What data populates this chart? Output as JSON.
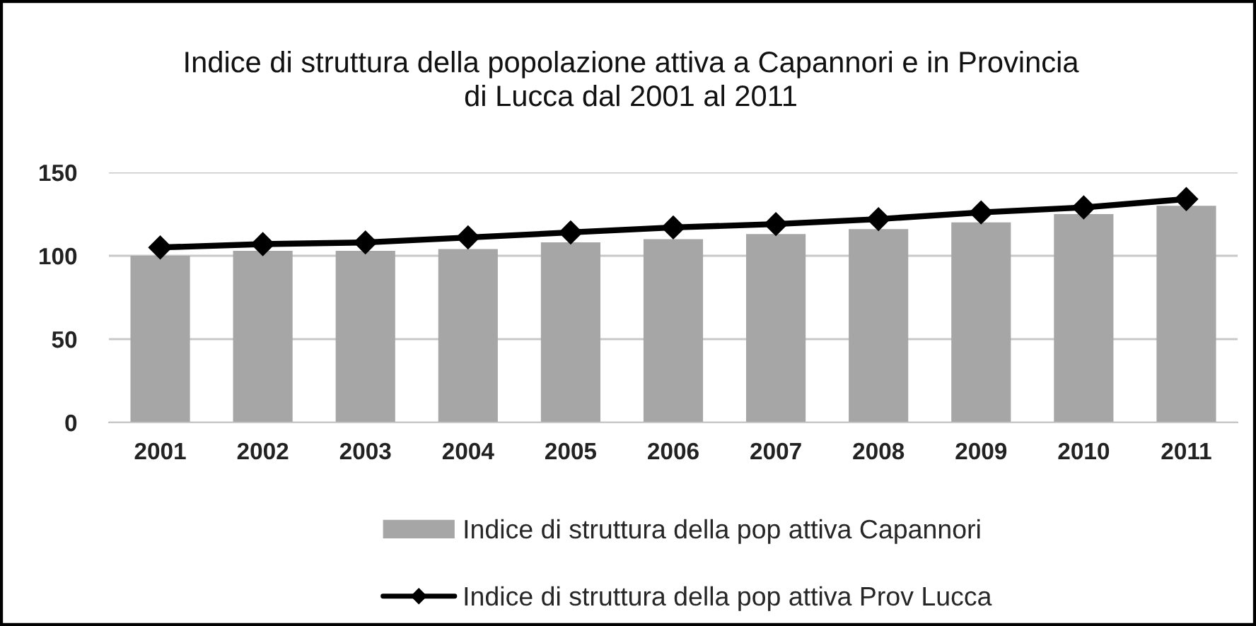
{
  "chart_data": {
    "type": "bar",
    "title": "Indice di struttura della popolazione attiva a Capannori e in Provincia\ndi Lucca dal 2001 al 2011",
    "categories": [
      "2001",
      "2002",
      "2003",
      "2004",
      "2005",
      "2006",
      "2007",
      "2008",
      "2009",
      "2010",
      "2011"
    ],
    "series": [
      {
        "name": "Indice di struttura della pop attiva Capannori",
        "color": "#a6a6a6",
        "values": [
          100,
          103,
          103,
          104,
          108,
          110,
          113,
          116,
          120,
          125,
          130
        ]
      },
      {
        "name": "Indice di struttura della pop attiva Prov Lucca",
        "type": "line",
        "color": "#000000",
        "marker": "diamond",
        "values": [
          105,
          107,
          108,
          111,
          114,
          117,
          119,
          122,
          126,
          129,
          134
        ]
      }
    ],
    "ylim": [
      0,
      150
    ],
    "yticks": [
      0,
      50,
      100,
      150
    ],
    "grid": "y",
    "legend": "bottom"
  }
}
